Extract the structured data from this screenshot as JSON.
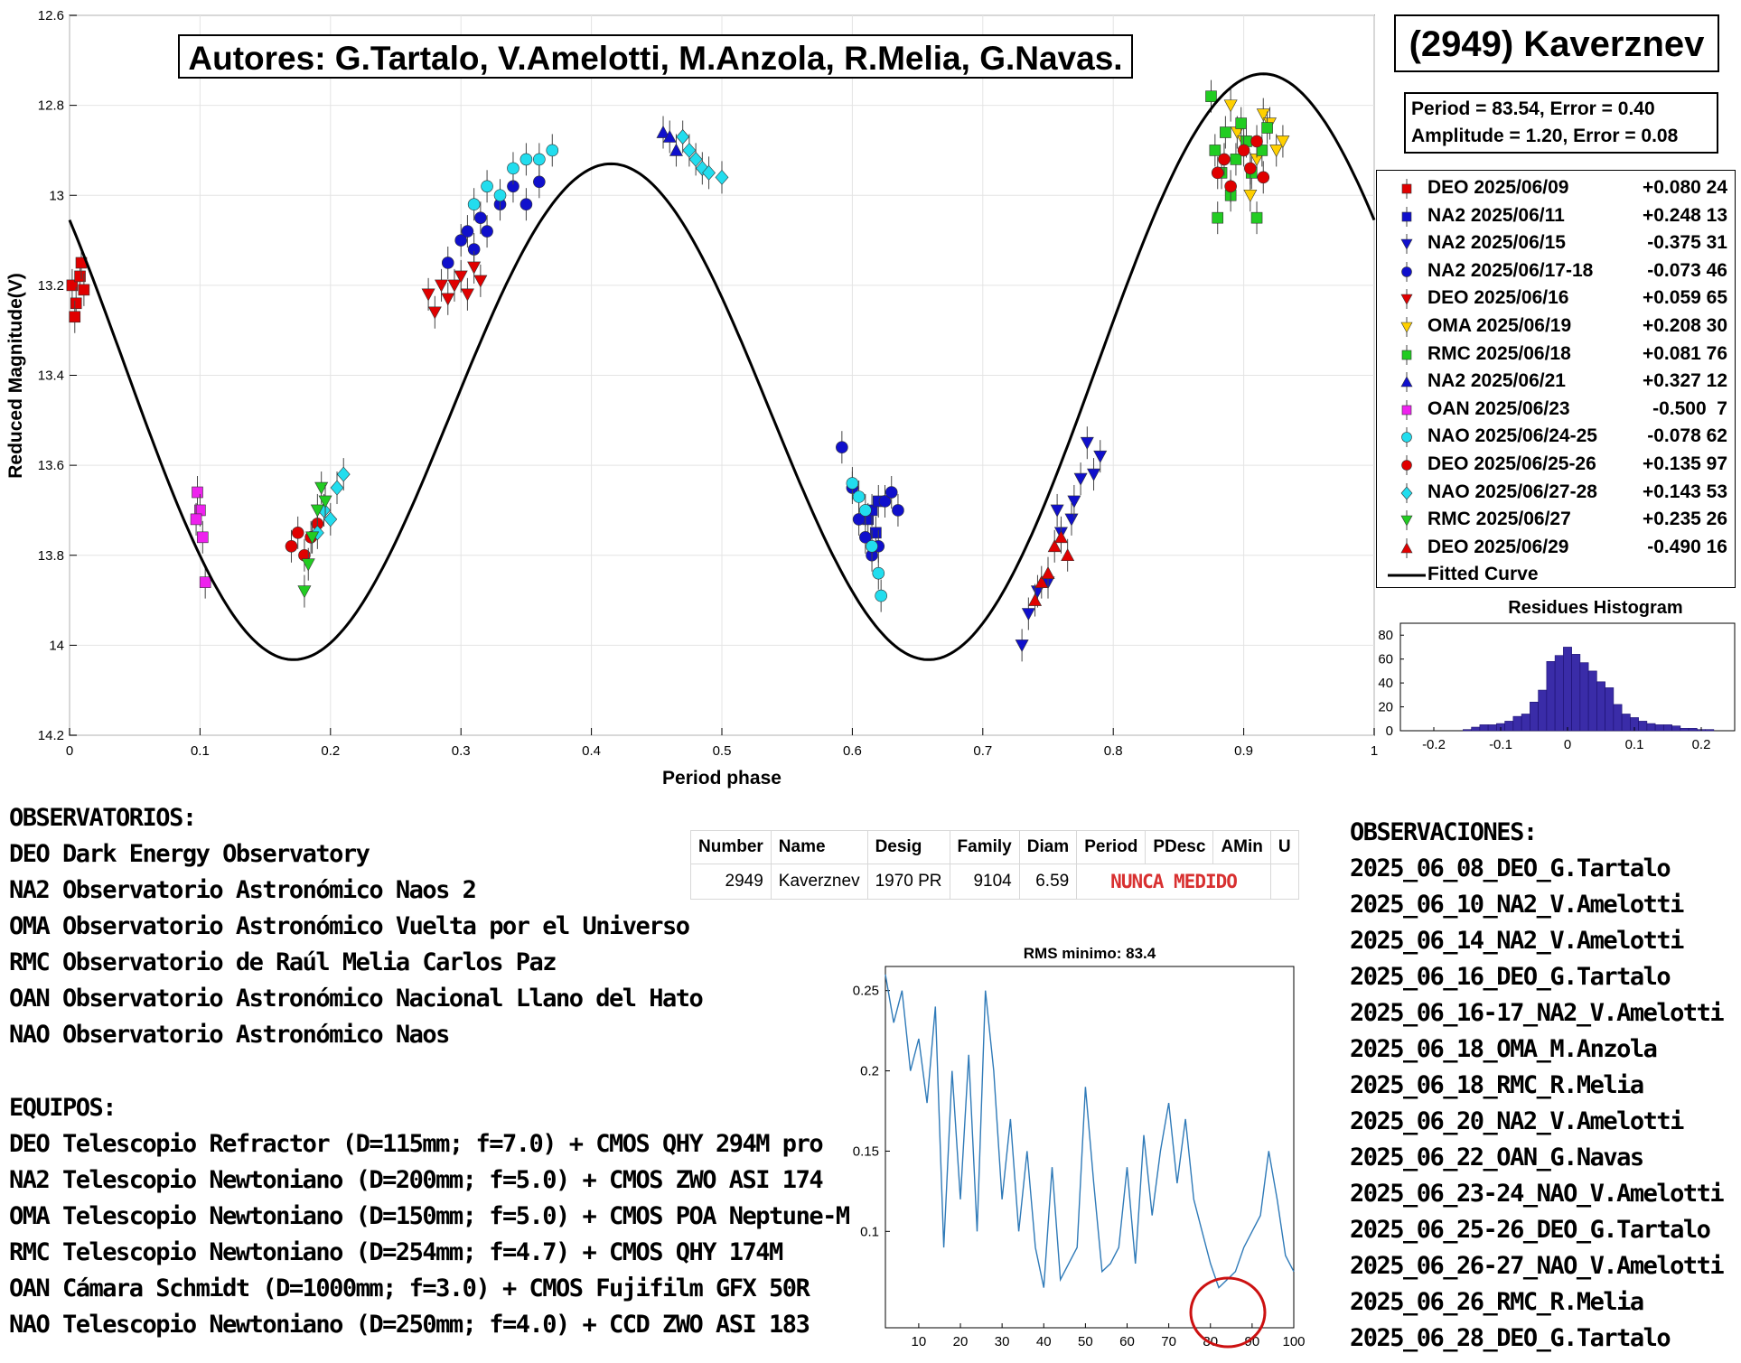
{
  "header": {
    "authors": "Autores: G.Tartalo, V.Amelotti, M.Anzola, R.Melia, G.Navas.",
    "asteroid": "(2949) Kaverznev",
    "period_line": "Period =  83.54, Error = 0.40",
    "amplitude_line": "Amplitude = 1.20, Error = 0.08"
  },
  "legend": {
    "items": [
      {
        "label": "DEO 2025/06/09",
        "value": "+0.080 24",
        "color": "#e00000",
        "marker": "square"
      },
      {
        "label": "NA2 2025/06/11",
        "value": "+0.248 13",
        "color": "#1010cc",
        "marker": "square"
      },
      {
        "label": "NA2 2025/06/15",
        "value": "-0.375 31",
        "color": "#1010cc",
        "marker": "triangle-down"
      },
      {
        "label": "NA2 2025/06/17-18",
        "value": "-0.073 46",
        "color": "#1010cc",
        "marker": "circle"
      },
      {
        "label": "DEO 2025/06/16",
        "value": "+0.059 65",
        "color": "#e00000",
        "marker": "triangle-down"
      },
      {
        "label": "OMA 2025/06/19",
        "value": "+0.208 30",
        "color": "#ffd000",
        "marker": "triangle-down"
      },
      {
        "label": "RMC 2025/06/18",
        "value": "+0.081 76",
        "color": "#22cc22",
        "marker": "square"
      },
      {
        "label": "NA2 2025/06/21",
        "value": "+0.327 12",
        "color": "#1010cc",
        "marker": "triangle-up"
      },
      {
        "label": "OAN 2025/06/23",
        "value": "-0.500  7",
        "color": "#ee22ee",
        "marker": "square"
      },
      {
        "label": "NAO 2025/06/24-25",
        "value": "-0.078 62",
        "color": "#22ddee",
        "marker": "circle"
      },
      {
        "label": "DEO 2025/06/25-26",
        "value": "+0.135 97",
        "color": "#e00000",
        "marker": "circle"
      },
      {
        "label": "NAO 2025/06/27-28",
        "value": "+0.143 53",
        "color": "#22ddee",
        "marker": "diamond"
      },
      {
        "label": "RMC 2025/06/27",
        "value": "+0.235 26",
        "color": "#22cc22",
        "marker": "triangle-down"
      },
      {
        "label": "DEO 2025/06/29",
        "value": "-0.490 16",
        "color": "#e00000",
        "marker": "triangle-up"
      },
      {
        "label": "Fitted Curve",
        "value": "",
        "color": "#000000",
        "marker": "line"
      }
    ]
  },
  "observatorios": {
    "heading": "OBSERVATORIOS:",
    "lines": [
      "DEO Dark Energy Observatory",
      "NA2 Observatorio Astronómico Naos 2",
      "OMA Observatorio Astronómico Vuelta por el Universo",
      "RMC Observatorio de Raúl Melia Carlos Paz",
      "OAN Observatorio Astronómico Nacional Llano del Hato",
      "NAO Observatorio Astronómico Naos"
    ]
  },
  "equipos": {
    "heading": "EQUIPOS:",
    "lines": [
      "DEO Telescopio Refractor (D=115mm; f=7.0) + CMOS QHY 294M pro",
      "NA2 Telescopio Newtoniano (D=200mm; f=5.0) + CMOS ZWO ASI 174",
      "OMA Telescopio Newtoniano (D=150mm; f=5.0) + CMOS POA Neptune-M",
      "RMC Telescopio Newtoniano (D=254mm; f=4.7) + CMOS QHY 174M",
      "OAN Cámara Schmidt (D=1000mm; f=3.0) + CMOS Fujifilm GFX 50R",
      "NAO Telescopio Newtoniano (D=250mm; f=4.0) + CCD ZWO ASI 183"
    ]
  },
  "observaciones": {
    "heading": "OBSERVACIONES:",
    "lines": [
      "2025_06_08_DEO_G.Tartalo",
      "2025_06_10_NA2_V.Amelotti",
      "2025_06_14_NA2_V.Amelotti",
      "2025_06_16_DEO_G.Tartalo",
      "2025_06_16-17_NA2_V.Amelotti",
      "2025_06_18_OMA_M.Anzola",
      "2025_06_18_RMC_R.Melia",
      "2025_06_20_NA2_V.Amelotti",
      "2025_06_22_OAN_G.Navas",
      "2025_06_23-24_NAO_V.Amelotti",
      "2025_06_25-26_DEO_G.Tartalo",
      "2025_06_26-27_NAO_V.Amelotti",
      "2025_06_26_RMC_R.Melia",
      "2025_06_28_DEO_G.Tartalo"
    ]
  },
  "mpc_table": {
    "headers": [
      "Number",
      "Name",
      "Desig",
      "Family",
      "Diam",
      "Period",
      "PDesc",
      "AMin",
      "U"
    ],
    "row": [
      "2949",
      "Kaverznev",
      "1970 PR",
      "9104",
      "6.59"
    ],
    "nunca": "NUNCA MEDIDO"
  },
  "chart_data": [
    {
      "type": "scatter",
      "xlabel": "Period phase",
      "ylabel": "Reduced Magnitude(V)",
      "xlim": [
        0,
        1
      ],
      "ylim": [
        14.2,
        12.6
      ],
      "y_reversed": true,
      "xticks": [
        "0",
        "0.1",
        "0.2",
        "0.3",
        "0.4",
        "0.5",
        "0.6",
        "0.7",
        "0.8",
        "0.9",
        "1"
      ],
      "yticks": [
        "12.6",
        "12.8",
        "13",
        "13.2",
        "13.4",
        "13.6",
        "13.8",
        "14",
        "14.2"
      ],
      "grid": true,
      "fitted_curve": {
        "period": 83.54,
        "amplitude": 1.2,
        "mean_mag": 13.43,
        "max_phase": 0.415
      },
      "series": [
        {
          "name": "DEO 2025/06/09",
          "color": "#e00000",
          "marker": "square",
          "points": [
            [
              0.002,
              13.2
            ],
            [
              0.005,
              13.24
            ],
            [
              0.008,
              13.18
            ],
            [
              0.011,
              13.21
            ],
            [
              0.004,
              13.27
            ],
            [
              0.009,
              13.15
            ]
          ]
        },
        {
          "name": "NA2 2025/06/11",
          "color": "#1010cc",
          "marker": "square",
          "points": [
            [
              0.612,
              13.72
            ],
            [
              0.615,
              13.7
            ],
            [
              0.618,
              13.75
            ],
            [
              0.62,
              13.68
            ]
          ]
        },
        {
          "name": "NA2 2025/06/15",
          "color": "#1010cc",
          "marker": "triangle-down",
          "points": [
            [
              0.73,
              14.0
            ],
            [
              0.735,
              13.93
            ],
            [
              0.742,
              13.88
            ],
            [
              0.75,
              13.86
            ],
            [
              0.76,
              13.75
            ],
            [
              0.768,
              13.72
            ],
            [
              0.775,
              13.63
            ],
            [
              0.78,
              13.55
            ],
            [
              0.785,
              13.62
            ],
            [
              0.79,
              13.58
            ],
            [
              0.77,
              13.68
            ],
            [
              0.757,
              13.7
            ]
          ]
        },
        {
          "name": "NA2 2025/06/17-18",
          "color": "#1010cc",
          "marker": "circle",
          "points": [
            [
              0.29,
              13.15
            ],
            [
              0.3,
              13.1
            ],
            [
              0.305,
              13.08
            ],
            [
              0.31,
              13.12
            ],
            [
              0.315,
              13.05
            ],
            [
              0.32,
              13.08
            ],
            [
              0.33,
              13.02
            ],
            [
              0.34,
              12.98
            ],
            [
              0.35,
              13.02
            ],
            [
              0.36,
              12.97
            ],
            [
              0.592,
              13.56
            ],
            [
              0.6,
              13.65
            ],
            [
              0.605,
              13.72
            ],
            [
              0.61,
              13.76
            ],
            [
              0.615,
              13.8
            ],
            [
              0.62,
              13.78
            ],
            [
              0.625,
              13.68
            ],
            [
              0.63,
              13.66
            ],
            [
              0.635,
              13.7
            ]
          ]
        },
        {
          "name": "DEO 2025/06/16",
          "color": "#e00000",
          "marker": "triangle-down",
          "points": [
            [
              0.275,
              13.22
            ],
            [
              0.28,
              13.26
            ],
            [
              0.285,
              13.2
            ],
            [
              0.29,
              13.23
            ],
            [
              0.295,
              13.2
            ],
            [
              0.3,
              13.18
            ],
            [
              0.305,
              13.22
            ],
            [
              0.31,
              13.16
            ],
            [
              0.315,
              13.19
            ]
          ]
        },
        {
          "name": "OMA 2025/06/19",
          "color": "#ffd000",
          "marker": "triangle-down",
          "points": [
            [
              0.89,
              12.8
            ],
            [
              0.895,
              12.86
            ],
            [
              0.9,
              12.88
            ],
            [
              0.905,
              13.0
            ],
            [
              0.91,
              12.92
            ],
            [
              0.915,
              12.82
            ],
            [
              0.92,
              12.84
            ],
            [
              0.925,
              12.9
            ],
            [
              0.93,
              12.88
            ]
          ]
        },
        {
          "name": "RMC 2025/06/18",
          "color": "#22cc22",
          "marker": "square",
          "points": [
            [
              0.875,
              12.78
            ],
            [
              0.878,
              12.9
            ],
            [
              0.88,
              13.05
            ],
            [
              0.883,
              12.95
            ],
            [
              0.886,
              12.86
            ],
            [
              0.89,
              13.0
            ],
            [
              0.894,
              12.92
            ],
            [
              0.898,
              12.84
            ],
            [
              0.902,
              12.88
            ],
            [
              0.906,
              12.95
            ],
            [
              0.91,
              13.05
            ],
            [
              0.914,
              12.9
            ],
            [
              0.918,
              12.85
            ]
          ]
        },
        {
          "name": "NA2 2025/06/21",
          "color": "#1010cc",
          "marker": "triangle-up",
          "points": [
            [
              0.455,
              12.86
            ],
            [
              0.46,
              12.87
            ],
            [
              0.465,
              12.9
            ]
          ]
        },
        {
          "name": "OAN 2025/06/23",
          "color": "#ee22ee",
          "marker": "square",
          "points": [
            [
              0.098,
              13.66
            ],
            [
              0.1,
              13.7
            ],
            [
              0.102,
              13.76
            ],
            [
              0.104,
              13.86
            ],
            [
              0.097,
              13.72
            ]
          ]
        },
        {
          "name": "NAO 2025/06/24-25",
          "color": "#22ddee",
          "marker": "circle",
          "points": [
            [
              0.31,
              13.02
            ],
            [
              0.32,
              12.98
            ],
            [
              0.33,
              13.0
            ],
            [
              0.34,
              12.94
            ],
            [
              0.35,
              12.92
            ],
            [
              0.36,
              12.92
            ],
            [
              0.37,
              12.9
            ],
            [
              0.6,
              13.64
            ],
            [
              0.605,
              13.67
            ],
            [
              0.61,
              13.7
            ],
            [
              0.615,
              13.78
            ],
            [
              0.62,
              13.84
            ],
            [
              0.622,
              13.89
            ]
          ]
        },
        {
          "name": "DEO 2025/06/25-26",
          "color": "#e00000",
          "marker": "circle",
          "points": [
            [
              0.17,
              13.78
            ],
            [
              0.175,
              13.75
            ],
            [
              0.18,
              13.8
            ],
            [
              0.185,
              13.76
            ],
            [
              0.19,
              13.73
            ],
            [
              0.88,
              12.95
            ],
            [
              0.885,
              12.92
            ],
            [
              0.89,
              12.98
            ],
            [
              0.9,
              12.9
            ],
            [
              0.905,
              12.94
            ],
            [
              0.91,
              12.88
            ],
            [
              0.915,
              12.96
            ]
          ]
        },
        {
          "name": "NAO 2025/06/27-28",
          "color": "#22ddee",
          "marker": "diamond",
          "points": [
            [
              0.19,
              13.75
            ],
            [
              0.195,
              13.7
            ],
            [
              0.2,
              13.72
            ],
            [
              0.205,
              13.65
            ],
            [
              0.21,
              13.62
            ],
            [
              0.47,
              12.87
            ],
            [
              0.475,
              12.9
            ],
            [
              0.48,
              12.92
            ],
            [
              0.485,
              12.94
            ],
            [
              0.49,
              12.95
            ],
            [
              0.5,
              12.96
            ]
          ]
        },
        {
          "name": "RMC 2025/06/27",
          "color": "#22cc22",
          "marker": "triangle-down",
          "points": [
            [
              0.18,
              13.88
            ],
            [
              0.183,
              13.82
            ],
            [
              0.186,
              13.76
            ],
            [
              0.19,
              13.7
            ],
            [
              0.193,
              13.65
            ],
            [
              0.196,
              13.68
            ]
          ]
        },
        {
          "name": "DEO 2025/06/29",
          "color": "#e00000",
          "marker": "triangle-up",
          "points": [
            [
              0.74,
              13.9
            ],
            [
              0.745,
              13.86
            ],
            [
              0.75,
              13.84
            ],
            [
              0.755,
              13.78
            ],
            [
              0.76,
              13.76
            ],
            [
              0.765,
              13.8
            ]
          ]
        }
      ]
    },
    {
      "type": "bar",
      "title": "Residues Histogram",
      "xlim": [
        -0.25,
        0.25
      ],
      "ylim": [
        0,
        90
      ],
      "xticks": [
        "-0.2",
        "-0.1",
        "0",
        "0.1",
        "0.2"
      ],
      "yticks": [
        "0",
        "20",
        "40",
        "60",
        "80"
      ],
      "bin_width": 0.0125,
      "bin_centers": [
        -0.15,
        -0.1375,
        -0.125,
        -0.1125,
        -0.1,
        -0.0875,
        -0.075,
        -0.0625,
        -0.05,
        -0.0375,
        -0.025,
        -0.0125,
        0.0,
        0.0125,
        0.025,
        0.0375,
        0.05,
        0.0625,
        0.075,
        0.0875,
        0.1,
        0.1125,
        0.125,
        0.1375,
        0.15,
        0.1625,
        0.175,
        0.1875,
        0.2,
        0.2125
      ],
      "values": [
        1,
        3,
        5,
        5,
        6,
        8,
        12,
        14,
        24,
        34,
        58,
        63,
        70,
        64,
        57,
        50,
        41,
        36,
        22,
        14,
        11,
        8,
        6,
        5,
        5,
        4,
        2,
        2,
        1,
        1
      ],
      "color": "#3a2ca8"
    },
    {
      "type": "line",
      "title": "RMS minimo: 83.4",
      "xlim": [
        2,
        100
      ],
      "ylim": [
        0.04,
        0.265
      ],
      "xticks": [
        "10",
        "20",
        "30",
        "40",
        "50",
        "60",
        "70",
        "80",
        "90",
        "100"
      ],
      "yticks": [
        "0.1",
        "0.15",
        "0.2",
        "0.25"
      ],
      "color": "#2f7ab8",
      "x": [
        2,
        4,
        6,
        8,
        10,
        12,
        14,
        16,
        18,
        20,
        22,
        24,
        26,
        28,
        30,
        32,
        34,
        36,
        38,
        40,
        42,
        44,
        46,
        48,
        50,
        52,
        54,
        56,
        58,
        60,
        62,
        64,
        66,
        68,
        70,
        72,
        74,
        76,
        78,
        80,
        82,
        84,
        86,
        88,
        90,
        92,
        94,
        96,
        98,
        100
      ],
      "values": [
        0.26,
        0.23,
        0.25,
        0.2,
        0.22,
        0.18,
        0.24,
        0.09,
        0.2,
        0.12,
        0.21,
        0.1,
        0.25,
        0.2,
        0.12,
        0.17,
        0.1,
        0.15,
        0.09,
        0.065,
        0.14,
        0.07,
        0.08,
        0.09,
        0.19,
        0.13,
        0.075,
        0.08,
        0.09,
        0.14,
        0.08,
        0.16,
        0.11,
        0.15,
        0.18,
        0.13,
        0.17,
        0.12,
        0.1,
        0.08,
        0.065,
        0.07,
        0.075,
        0.09,
        0.1,
        0.11,
        0.15,
        0.12,
        0.085,
        0.075
      ]
    }
  ]
}
